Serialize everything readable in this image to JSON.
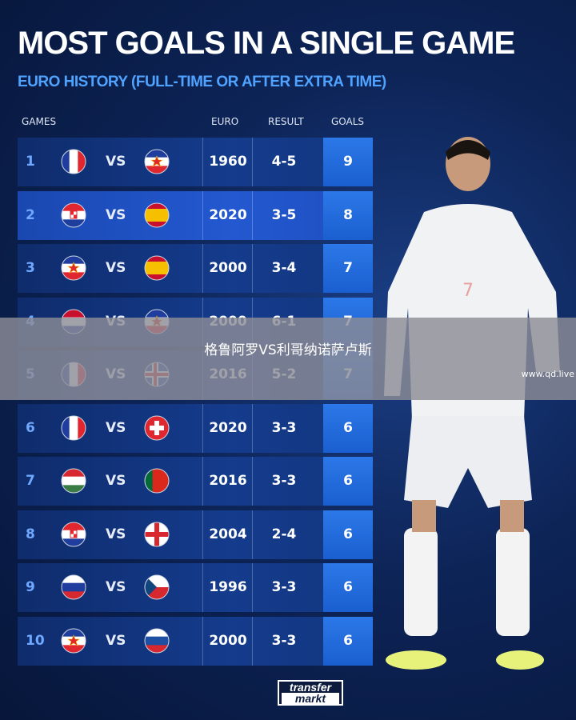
{
  "title": "MOST GOALS IN A SINGLE GAME",
  "subtitle": "EURO HISTORY (FULL-TIME OR AFTER EXTRA TIME)",
  "headers": {
    "games": "GAMES",
    "euro": "EURO",
    "result": "RESULT",
    "goals": "GOALS"
  },
  "vs_label": "VS",
  "colors": {
    "accent": "#4fa3ff",
    "goals_box": "#2c78e8",
    "background": "#0d2457"
  },
  "rows": [
    {
      "rank": "1",
      "team1": "France",
      "team2": "Yugoslavia",
      "euro": "1960",
      "result": "4-5",
      "goals": "9"
    },
    {
      "rank": "2",
      "team1": "Croatia",
      "team2": "Spain",
      "euro": "2020",
      "result": "3-5",
      "goals": "8"
    },
    {
      "rank": "3",
      "team1": "Yugoslavia",
      "team2": "Spain",
      "euro": "2000",
      "result": "3-4",
      "goals": "7"
    },
    {
      "rank": "4",
      "team1": "Netherlands",
      "team2": "Yugoslavia",
      "euro": "2000",
      "result": "6-1",
      "goals": "7"
    },
    {
      "rank": "5",
      "team1": "France",
      "team2": "Iceland",
      "euro": "2016",
      "result": "5-2",
      "goals": "7"
    },
    {
      "rank": "6",
      "team1": "France",
      "team2": "Switzerland",
      "euro": "2020",
      "result": "3-3",
      "goals": "6"
    },
    {
      "rank": "7",
      "team1": "Hungary",
      "team2": "Portugal",
      "euro": "2016",
      "result": "3-3",
      "goals": "6"
    },
    {
      "rank": "8",
      "team1": "Croatia",
      "team2": "England",
      "euro": "2004",
      "result": "2-4",
      "goals": "6"
    },
    {
      "rank": "9",
      "team1": "Russia",
      "team2": "Czech Republic",
      "euro": "1996",
      "result": "3-3",
      "goals": "6"
    },
    {
      "rank": "10",
      "team1": "Yugoslavia",
      "team2": "Slovenia",
      "euro": "2000",
      "result": "3-3",
      "goals": "6"
    }
  ],
  "overlay": {
    "text": "格鲁阿罗VS利哥纳诺萨卢斯",
    "watermark": "www.qd.live"
  },
  "logo": {
    "line1": "transfer",
    "line2": "markt"
  }
}
